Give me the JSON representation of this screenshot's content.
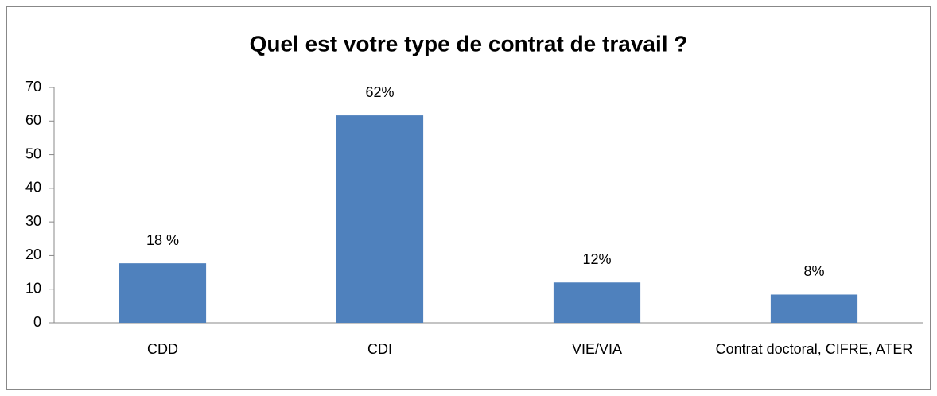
{
  "chart_data": {
    "type": "bar",
    "title": "Quel est votre type de contrat de travail ?",
    "categories": [
      "CDD",
      "CDI",
      "VIE/VIA",
      "Contrat doctoral, CIFRE, ATER"
    ],
    "values": [
      17.7,
      61.7,
      12,
      8.4
    ],
    "value_labels": [
      "18 %",
      "62%",
      "12%",
      "8%"
    ],
    "color": "#4f81bd",
    "ylim": [
      0,
      70
    ],
    "yticks": [
      0,
      10,
      20,
      30,
      40,
      50,
      60,
      70
    ],
    "grid": false
  }
}
